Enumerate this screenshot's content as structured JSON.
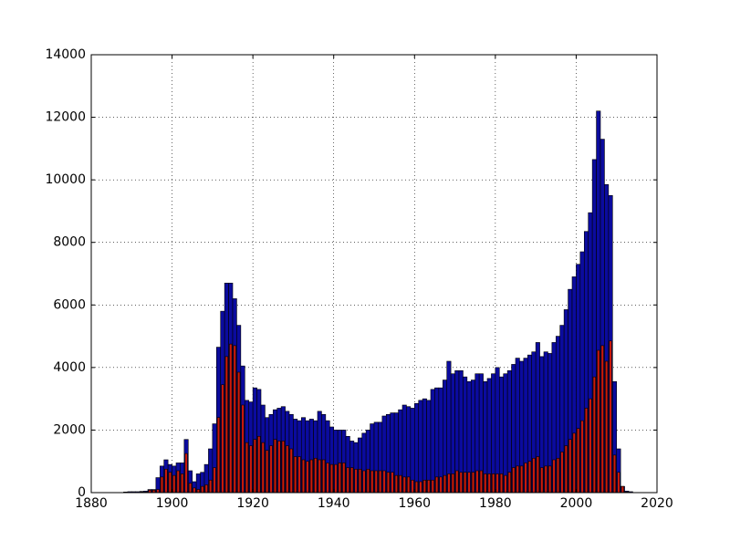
{
  "chart_data": {
    "type": "bar",
    "grid": true,
    "x": [
      1888,
      1889,
      1890,
      1891,
      1892,
      1893,
      1894,
      1895,
      1896,
      1897,
      1898,
      1899,
      1900,
      1901,
      1902,
      1903,
      1904,
      1905,
      1906,
      1907,
      1908,
      1909,
      1910,
      1911,
      1912,
      1913,
      1914,
      1915,
      1916,
      1917,
      1918,
      1919,
      1920,
      1921,
      1922,
      1923,
      1924,
      1925,
      1926,
      1927,
      1928,
      1929,
      1930,
      1931,
      1932,
      1933,
      1934,
      1935,
      1936,
      1937,
      1938,
      1939,
      1940,
      1941,
      1942,
      1943,
      1944,
      1945,
      1946,
      1947,
      1948,
      1949,
      1950,
      1951,
      1952,
      1953,
      1954,
      1955,
      1956,
      1957,
      1958,
      1959,
      1960,
      1961,
      1962,
      1963,
      1964,
      1965,
      1966,
      1967,
      1968,
      1969,
      1970,
      1971,
      1972,
      1973,
      1974,
      1975,
      1976,
      1977,
      1978,
      1979,
      1980,
      1981,
      1982,
      1983,
      1984,
      1985,
      1986,
      1987,
      1988,
      1989,
      1990,
      1991,
      1992,
      1993,
      1994,
      1995,
      1996,
      1997,
      1998,
      1999,
      2000,
      2001,
      2002,
      2003,
      2004,
      2005,
      2006,
      2007,
      2008,
      2009,
      2010,
      2011,
      2012,
      2013
    ],
    "series": [
      {
        "color": "#0b0b9e",
        "values": [
          20,
          30,
          30,
          30,
          40,
          50,
          100,
          100,
          480,
          850,
          1050,
          900,
          850,
          950,
          950,
          1700,
          700,
          350,
          600,
          650,
          900,
          1400,
          2200,
          4650,
          5800,
          6700,
          6700,
          6200,
          5350,
          4050,
          2950,
          2900,
          3350,
          3300,
          2800,
          2400,
          2500,
          2650,
          2700,
          2750,
          2600,
          2500,
          2350,
          2300,
          2400,
          2300,
          2350,
          2300,
          2600,
          2500,
          2300,
          2100,
          2000,
          2000,
          2000,
          1800,
          1650,
          1600,
          1750,
          1900,
          2000,
          2200,
          2250,
          2250,
          2450,
          2500,
          2550,
          2550,
          2650,
          2800,
          2750,
          2700,
          2850,
          2950,
          3000,
          2950,
          3300,
          3350,
          3350,
          3600,
          4200,
          3800,
          3900,
          3900,
          3700,
          3550,
          3600,
          3800,
          3800,
          3550,
          3650,
          3800,
          4000,
          3700,
          3800,
          3900,
          4100,
          4300,
          4200,
          4300,
          4400,
          4500,
          4800,
          4350,
          4500,
          4450,
          4800,
          5000,
          5350,
          5850,
          6500,
          6900,
          7300,
          7700,
          8350,
          8950,
          10650,
          12200,
          11300,
          9850,
          9500,
          3550,
          1400,
          200,
          50,
          30
        ]
      },
      {
        "color": "#cc1a0a",
        "values": [
          10,
          10,
          10,
          10,
          20,
          20,
          80,
          80,
          100,
          500,
          750,
          650,
          550,
          700,
          600,
          1250,
          300,
          150,
          100,
          200,
          250,
          400,
          800,
          2400,
          3450,
          4350,
          4750,
          4700,
          3850,
          2800,
          1600,
          1500,
          1700,
          1800,
          1600,
          1350,
          1500,
          1700,
          1650,
          1650,
          1500,
          1400,
          1150,
          1150,
          1050,
          1000,
          1050,
          1100,
          1050,
          1050,
          950,
          900,
          900,
          950,
          950,
          800,
          800,
          750,
          750,
          700,
          750,
          700,
          700,
          700,
          700,
          650,
          650,
          550,
          550,
          500,
          500,
          400,
          350,
          350,
          400,
          400,
          400,
          500,
          500,
          550,
          600,
          600,
          700,
          650,
          650,
          650,
          650,
          700,
          700,
          600,
          600,
          600,
          600,
          600,
          550,
          650,
          800,
          850,
          850,
          950,
          1000,
          1100,
          1150,
          800,
          850,
          850,
          1050,
          1100,
          1300,
          1500,
          1700,
          1900,
          2050,
          2300,
          2700,
          3000,
          3700,
          4550,
          4700,
          4200,
          4850,
          1200,
          650,
          200,
          20,
          10
        ]
      }
    ],
    "xlim": [
      1880,
      2020
    ],
    "xticks": [
      1880,
      1900,
      1920,
      1940,
      1960,
      1980,
      2000,
      2020
    ],
    "ylim": [
      0,
      14000
    ],
    "yticks": [
      0,
      2000,
      4000,
      6000,
      8000,
      10000,
      12000,
      14000
    ]
  }
}
